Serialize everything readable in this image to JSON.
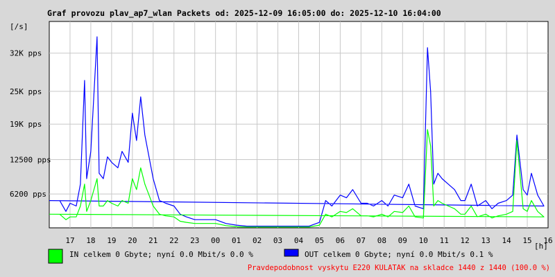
{
  "chart_data": {
    "type": "line",
    "title": "Graf provozu plav_ap7_wlan Packets od: 2025-12-09 16:05:00 do: 2025-12-10 16:04:00",
    "ylabel": "[/s]",
    "xlabel": "[h]",
    "ylim": [
      0,
      37800
    ],
    "y_ticks": [
      {
        "value": 6200,
        "label": "6200 pps"
      },
      {
        "value": 12500,
        "label": "12500 pps"
      },
      {
        "value": 19000,
        "label": "19K pps"
      },
      {
        "value": 25000,
        "label": "25K pps"
      },
      {
        "value": 32000,
        "label": "32K pps"
      }
    ],
    "x_ticks": [
      "17",
      "18",
      "19",
      "20",
      "21",
      "22",
      "23",
      "00",
      "01",
      "02",
      "03",
      "04",
      "05",
      "06",
      "07",
      "08",
      "09",
      "10",
      "11",
      "12",
      "13",
      "14",
      "15",
      "16"
    ],
    "grid": true,
    "colors": {
      "in": "#00ff00",
      "out": "#0000ff",
      "grid": "#c8c8c8",
      "background": "#ffffff",
      "footer": "#ff0000"
    },
    "series": [
      {
        "name": "OUT",
        "color": "#0000ff",
        "x": [
          16.5,
          16.8,
          17,
          17.3,
          17.5,
          17.7,
          17.8,
          18,
          18.3,
          18.4,
          18.6,
          18.8,
          19,
          19.3,
          19.5,
          19.8,
          20,
          20.2,
          20.4,
          20.6,
          20.8,
          21,
          21.3,
          21.6,
          22,
          22.3,
          22.6,
          23,
          23.5,
          0,
          0.5,
          1,
          1.5,
          2,
          2.5,
          3,
          3.5,
          4,
          4.5,
          5,
          5.3,
          5.6,
          6,
          6.3,
          6.6,
          7,
          7.3,
          7.6,
          8,
          8.3,
          8.6,
          9,
          9.3,
          9.6,
          10,
          10.2,
          10.35,
          10.5,
          10.7,
          10.9,
          11.2,
          11.5,
          11.8,
          12,
          12.3,
          12.6,
          13,
          13.3,
          13.6,
          14,
          14.3,
          14.5,
          14.8,
          15,
          15.2,
          15.5,
          15.8,
          16
        ],
        "values": [
          5000,
          3000,
          4500,
          4000,
          8000,
          27000,
          9000,
          14000,
          35000,
          10000,
          9000,
          13000,
          12000,
          11000,
          14000,
          12000,
          21000,
          16000,
          24000,
          17000,
          13000,
          9000,
          5000,
          4500,
          4000,
          2500,
          2000,
          1500,
          1500,
          1500,
          800,
          500,
          300,
          300,
          300,
          300,
          300,
          300,
          300,
          1000,
          5000,
          4000,
          6000,
          5500,
          7000,
          4500,
          4500,
          4000,
          5000,
          4000,
          6000,
          5500,
          8000,
          4000,
          3500,
          33000,
          25000,
          8000,
          10000,
          9000,
          8000,
          7000,
          5000,
          5000,
          8000,
          4000,
          5000,
          3500,
          4500,
          5000,
          6000,
          17000,
          7000,
          6000,
          10000,
          6000,
          4000,
          5000
        ]
      },
      {
        "name": "IN",
        "color": "#00ff00",
        "x": [
          16.5,
          16.8,
          17,
          17.3,
          17.5,
          17.7,
          17.8,
          18,
          18.3,
          18.4,
          18.6,
          18.8,
          19,
          19.3,
          19.5,
          19.8,
          20,
          20.2,
          20.4,
          20.6,
          20.8,
          21,
          21.3,
          21.6,
          22,
          22.3,
          22.6,
          23,
          23.5,
          0,
          0.5,
          1,
          1.5,
          2,
          2.5,
          3,
          3.5,
          4,
          4.5,
          5,
          5.3,
          5.6,
          6,
          6.3,
          6.6,
          7,
          7.3,
          7.6,
          8,
          8.3,
          8.6,
          9,
          9.3,
          9.6,
          10,
          10.2,
          10.35,
          10.5,
          10.7,
          10.9,
          11.2,
          11.5,
          11.8,
          12,
          12.3,
          12.6,
          13,
          13.3,
          13.6,
          14,
          14.3,
          14.5,
          14.8,
          15,
          15.2,
          15.5,
          15.8,
          16
        ],
        "values": [
          2500,
          1500,
          2000,
          2000,
          4000,
          8000,
          3000,
          5000,
          9000,
          4000,
          4000,
          5000,
          4500,
          4000,
          5000,
          4500,
          9000,
          7000,
          11000,
          8000,
          6000,
          4000,
          2500,
          2200,
          2000,
          1200,
          1000,
          800,
          800,
          800,
          400,
          200,
          150,
          150,
          150,
          150,
          150,
          150,
          150,
          500,
          2500,
          2000,
          3000,
          2800,
          3500,
          2200,
          2200,
          2000,
          2500,
          2000,
          3000,
          2800,
          4000,
          2000,
          1800,
          18000,
          15000,
          4000,
          5000,
          4500,
          4000,
          3500,
          2500,
          2500,
          4000,
          2000,
          2500,
          1800,
          2200,
          2500,
          3000,
          16000,
          3500,
          3000,
          5000,
          3000,
          2000,
          2500
        ]
      }
    ],
    "legend": [
      {
        "key": "in",
        "color": "#00ff00",
        "text": "IN celkem 0 Gbyte; nyní   0.0 Mbit/s 0.0 %"
      },
      {
        "key": "out",
        "color": "#0000ff",
        "text": "OUT celkem 0 Gbyte; nyní   0.0 Mbit/s 0.1 %"
      }
    ],
    "footer": "Pravdepodobnost vyskytu E220 KULATAK na skladce 1440 z 1440 (100.0 %)"
  }
}
